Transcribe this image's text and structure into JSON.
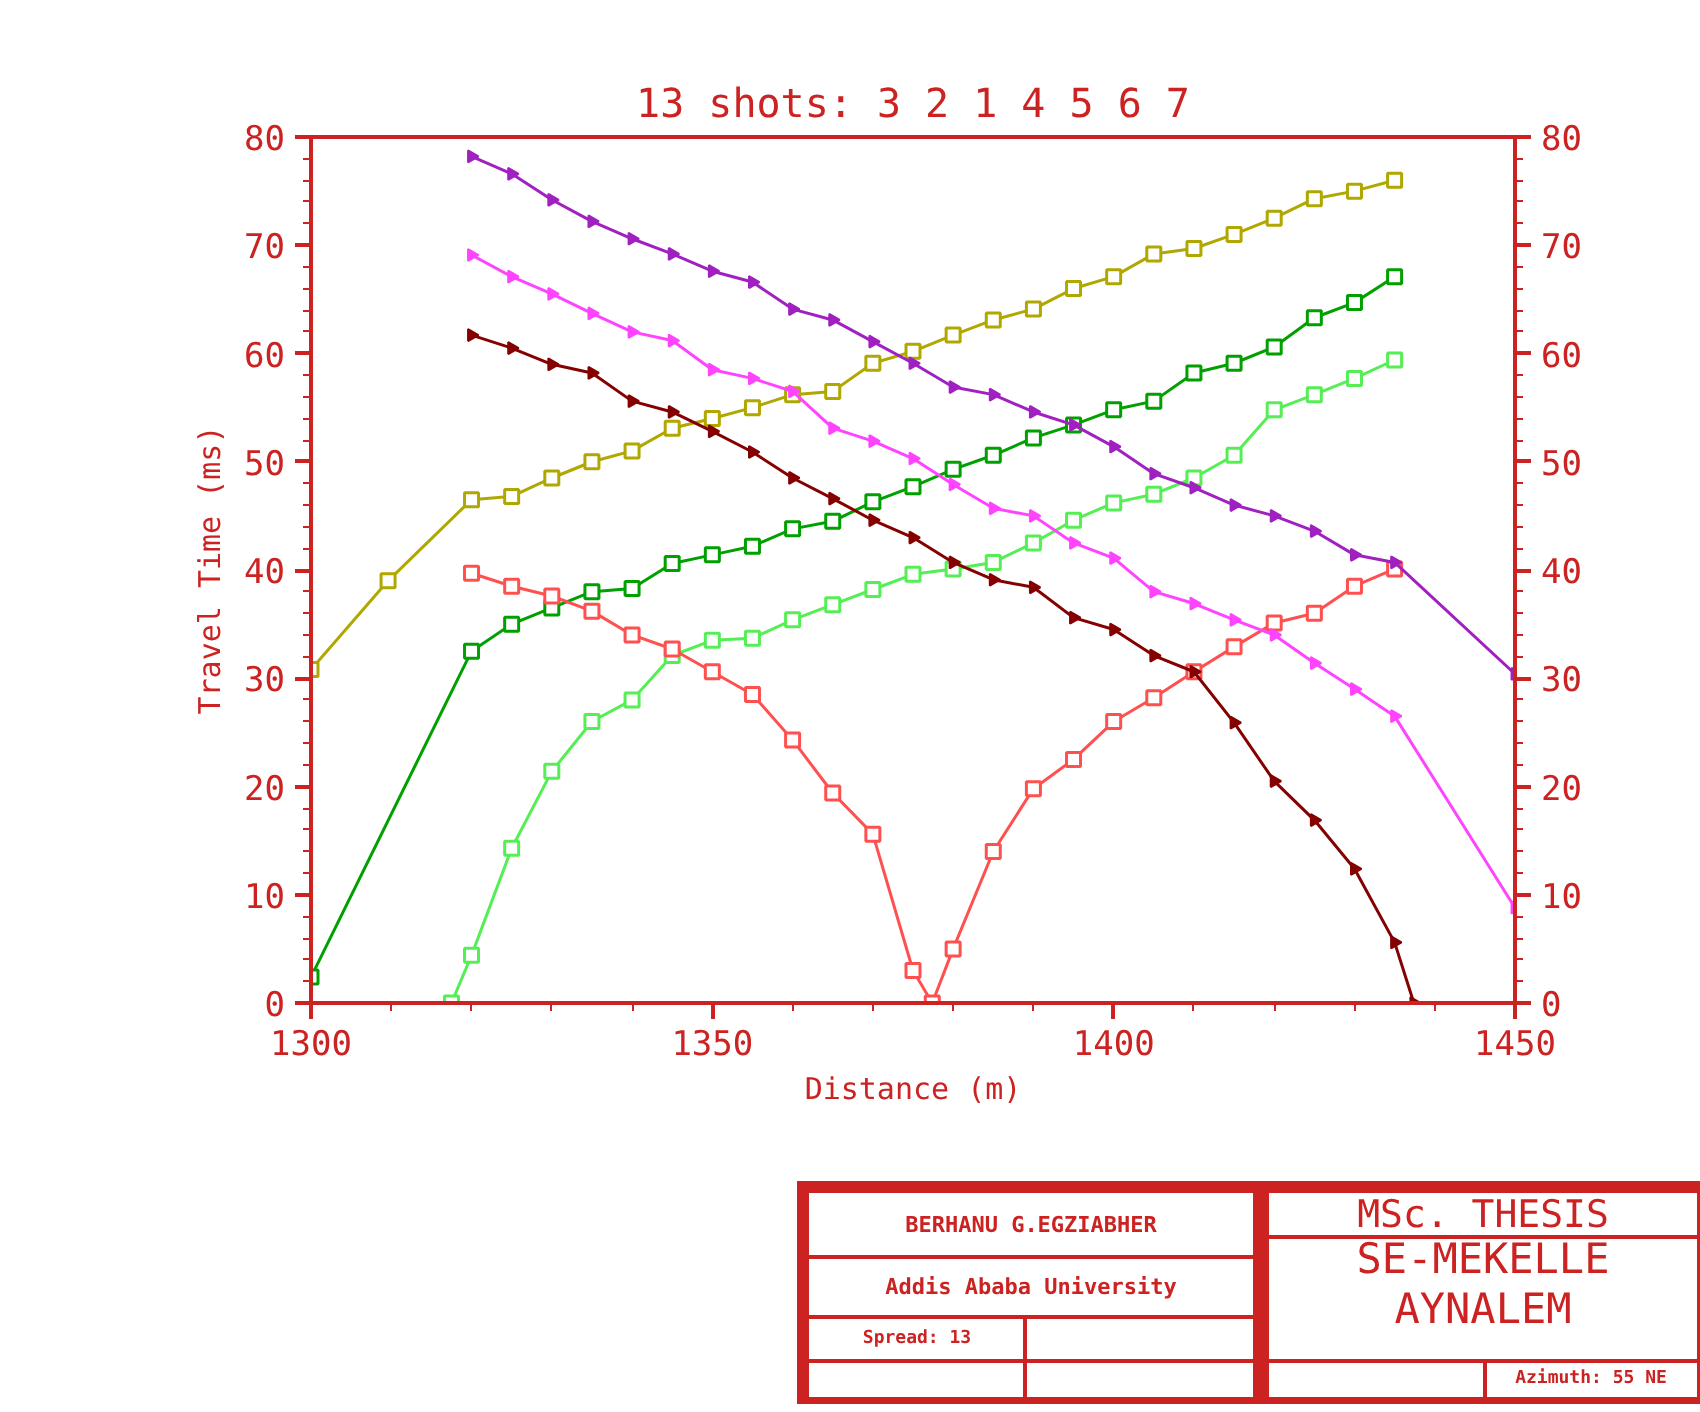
{
  "chart_data": {
    "type": "line",
    "title": "13 shots: 3 2 1 4 5 6 7",
    "xlabel": "Distance (m)",
    "ylabel": "Travel Time (ms)",
    "xlim": [
      1300,
      1450
    ],
    "xticks": [
      1300,
      1350,
      1400,
      1450
    ],
    "ylim": [
      0,
      80
    ],
    "yticks": [
      0,
      10,
      20,
      30,
      40,
      50,
      60,
      70,
      80
    ],
    "y2lim": [
      0,
      80
    ],
    "y2ticks": [
      0,
      10,
      20,
      30,
      40,
      50,
      60,
      70,
      80
    ],
    "grid": false,
    "line_style": "solid",
    "series": [
      {
        "color": "#b0a800",
        "marker": "square",
        "x": [
          1300,
          1309.6,
          1320,
          1325,
          1330,
          1335,
          1340,
          1345,
          1350,
          1355,
          1360,
          1365,
          1370,
          1375,
          1380,
          1385,
          1390,
          1395,
          1400,
          1405,
          1410,
          1415,
          1420,
          1425,
          1430,
          1435
        ],
        "values": [
          30.8,
          39.0,
          46.5,
          46.8,
          48.5,
          50.0,
          51.0,
          53.1,
          54.0,
          55.0,
          56.2,
          56.5,
          59.1,
          60.2,
          61.7,
          63.1,
          64.1,
          66.0,
          67.1,
          69.2,
          69.7,
          71.0,
          72.5,
          74.3,
          75.0,
          76.0
        ]
      },
      {
        "color": "#00a000",
        "marker": "square",
        "x": [
          1300,
          1320,
          1325,
          1330,
          1335,
          1340,
          1345,
          1350,
          1355,
          1360,
          1365,
          1370,
          1375,
          1380,
          1385,
          1390,
          1395,
          1400,
          1405,
          1410,
          1415,
          1420,
          1425,
          1430,
          1435
        ],
        "values": [
          2.4,
          32.5,
          35.0,
          36.5,
          38.0,
          38.3,
          40.6,
          41.4,
          42.2,
          43.8,
          44.5,
          46.3,
          47.7,
          49.3,
          50.6,
          52.2,
          53.4,
          54.8,
          55.6,
          58.2,
          59.1,
          60.6,
          63.3,
          64.7,
          67.1
        ]
      },
      {
        "color": "#55ee55",
        "marker": "square",
        "x": [
          1317.5,
          1320,
          1325,
          1330,
          1335,
          1340,
          1345,
          1350,
          1355,
          1360,
          1365,
          1370,
          1375,
          1380,
          1385,
          1390,
          1395,
          1400,
          1405,
          1410,
          1415,
          1420,
          1425,
          1430,
          1435
        ],
        "values": [
          0,
          4.4,
          14.3,
          21.4,
          26.0,
          28.0,
          32.1,
          33.5,
          33.7,
          35.4,
          36.8,
          38.2,
          39.6,
          40.1,
          40.7,
          42.5,
          44.6,
          46.2,
          47.0,
          48.5,
          50.6,
          54.8,
          56.2,
          57.7,
          59.4
        ]
      },
      {
        "color": "#ff5050",
        "marker": "square",
        "x": [
          1320,
          1325,
          1330,
          1335,
          1340,
          1345,
          1350,
          1355,
          1360,
          1365,
          1370,
          1375,
          1377.4,
          1380,
          1385,
          1390,
          1395,
          1400,
          1405,
          1410,
          1415,
          1420,
          1425,
          1430,
          1435
        ],
        "values": [
          39.7,
          38.5,
          37.6,
          36.2,
          34.0,
          32.7,
          30.6,
          28.5,
          24.3,
          19.4,
          15.6,
          3.0,
          0,
          5.0,
          14.0,
          19.8,
          22.5,
          26.0,
          28.2,
          30.6,
          32.9,
          35.1,
          36.0,
          38.5,
          40.1
        ]
      },
      {
        "color": "#850000",
        "marker": "triangle",
        "x": [
          1320,
          1325,
          1330,
          1335,
          1340,
          1345,
          1350,
          1355,
          1360,
          1365,
          1370,
          1375,
          1380,
          1385,
          1390,
          1395,
          1400,
          1405,
          1410,
          1415,
          1420,
          1425,
          1430,
          1435,
          1437.4
        ],
        "values": [
          61.7,
          60.5,
          59.0,
          58.2,
          55.6,
          54.6,
          52.8,
          50.9,
          48.5,
          46.6,
          44.6,
          43.0,
          40.7,
          39.1,
          38.4,
          35.6,
          34.5,
          32.1,
          30.6,
          25.9,
          20.5,
          16.9,
          12.4,
          5.6,
          0
        ]
      },
      {
        "color": "#ff44ff",
        "marker": "triangle",
        "x": [
          1320,
          1325,
          1330,
          1335,
          1340,
          1345,
          1350,
          1355,
          1360,
          1365,
          1370,
          1375,
          1380,
          1385,
          1390,
          1395,
          1400,
          1405,
          1410,
          1415,
          1420,
          1425,
          1430,
          1435,
          1450
        ],
        "values": [
          69.1,
          67.1,
          65.5,
          63.7,
          62.0,
          61.2,
          58.5,
          57.7,
          56.5,
          53.1,
          51.9,
          50.3,
          47.9,
          45.7,
          45.0,
          42.5,
          41.1,
          38.0,
          36.9,
          35.4,
          34.0,
          31.4,
          29.0,
          26.5,
          8.8
        ]
      },
      {
        "color": "#a020c0",
        "marker": "triangle",
        "x": [
          1320,
          1325,
          1330,
          1335,
          1340,
          1345,
          1350,
          1355,
          1360,
          1365,
          1370,
          1375,
          1380,
          1385,
          1390,
          1395,
          1400,
          1405,
          1410,
          1415,
          1420,
          1425,
          1430,
          1435,
          1450
        ],
        "values": [
          78.2,
          76.6,
          74.2,
          72.2,
          70.6,
          69.2,
          67.6,
          66.6,
          64.1,
          63.1,
          61.1,
          59.1,
          56.9,
          56.2,
          54.6,
          53.4,
          51.4,
          48.9,
          47.6,
          46.0,
          45.0,
          43.6,
          41.4,
          40.7,
          30.4
        ]
      }
    ],
    "annotations": [
      "BERHANU G.EGZIABHER",
      "Addis Ababa University",
      "Spread: 13",
      "MSc. THESIS",
      "SE-MEKELLE",
      "AYNALEM",
      "Azimuth: 55 NE"
    ]
  }
}
